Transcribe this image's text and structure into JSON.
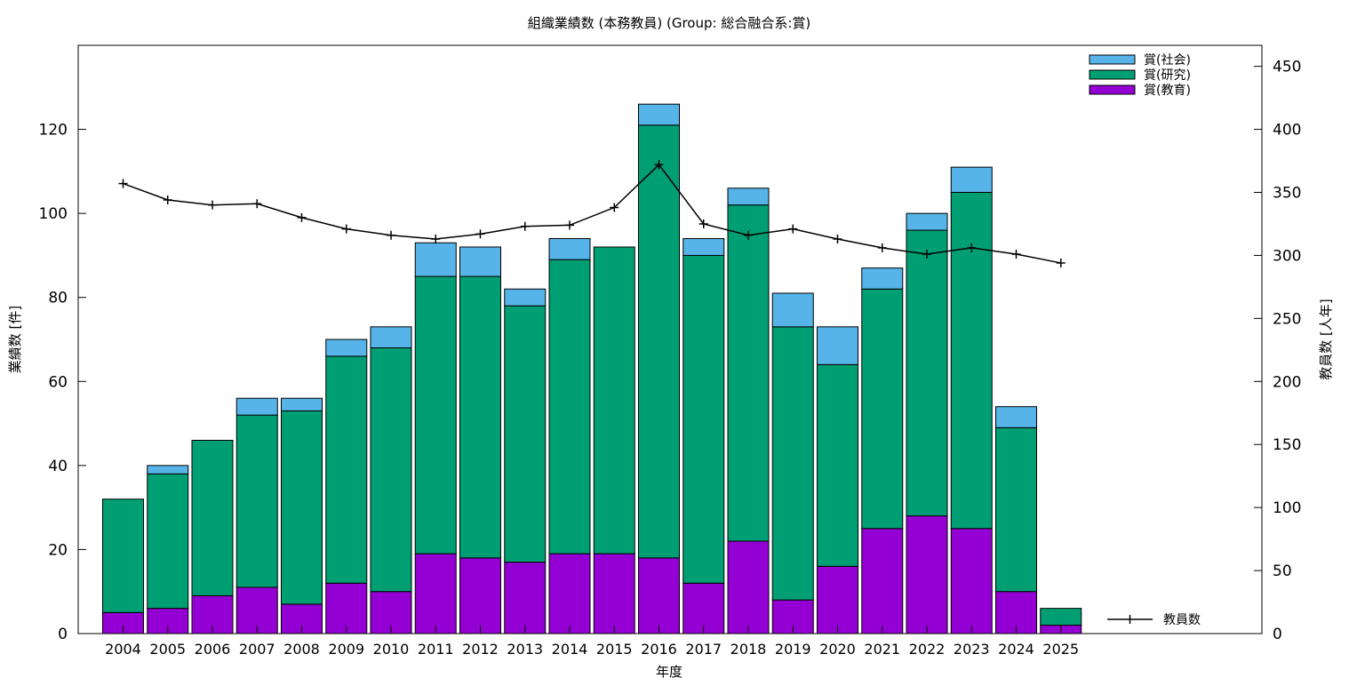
{
  "chart_data": {
    "type": "bar",
    "title": "組織業績数 (本務教員) (Group: 総合融合系:賞)",
    "xlabel": "年度",
    "ylabel": "業績数 [件]",
    "y2label": "教員数 [人年]",
    "ylim": [
      0,
      140
    ],
    "y2lim": [
      0,
      466.67
    ],
    "yticks": [
      "0",
      "20",
      "40",
      "60",
      "80",
      "100",
      "120"
    ],
    "y2ticks": [
      "0",
      "50",
      "100",
      "150",
      "200",
      "250",
      "300",
      "350",
      "400",
      "450"
    ],
    "stacked": true,
    "grid": false,
    "legend_position": "top-right",
    "categories": [
      "2004",
      "2005",
      "2006",
      "2007",
      "2008",
      "2009",
      "2010",
      "2011",
      "2012",
      "2013",
      "2014",
      "2015",
      "2016",
      "2017",
      "2018",
      "2019",
      "2020",
      "2021",
      "2022",
      "2023",
      "2024",
      "2025"
    ],
    "series": [
      {
        "name": "賞(教育)",
        "color": "#9400d3",
        "values": [
          5,
          6,
          9,
          11,
          7,
          12,
          10,
          19,
          18,
          17,
          19,
          19,
          18,
          12,
          22,
          8,
          16,
          25,
          28,
          25,
          10,
          2
        ]
      },
      {
        "name": "賞(研究)",
        "color": "#009e73",
        "values": [
          27,
          32,
          37,
          41,
          46,
          54,
          58,
          66,
          67,
          61,
          70,
          73,
          103,
          78,
          80,
          65,
          48,
          57,
          68,
          80,
          39,
          4
        ]
      },
      {
        "name": "賞(社会)",
        "color": "#56b4e9",
        "values": [
          0,
          2,
          0,
          4,
          3,
          4,
          5,
          8,
          7,
          4,
          5,
          0,
          5,
          4,
          4,
          8,
          9,
          5,
          4,
          6,
          5,
          0
        ]
      }
    ],
    "line_series": {
      "name": "教員数",
      "color": "#000000",
      "axis": "right",
      "values": [
        357,
        344,
        340,
        341,
        330,
        321,
        316,
        313,
        317,
        323,
        324,
        338,
        372,
        325,
        316,
        321,
        313,
        306,
        301,
        306,
        301,
        294
      ]
    },
    "legend_bars": [
      "賞(社会)",
      "賞(研究)",
      "賞(教育)"
    ]
  }
}
